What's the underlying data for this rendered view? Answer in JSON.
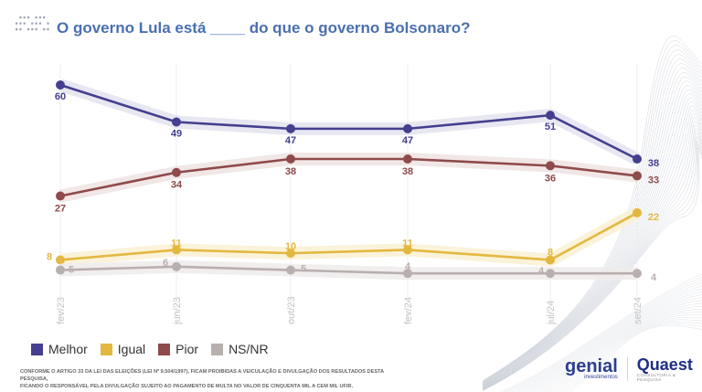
{
  "title": "O governo Lula está ____ do que o governo Bolsonaro?",
  "legend": [
    {
      "label": "Melhor",
      "color": "#443f8f"
    },
    {
      "label": "Igual",
      "color": "#e3b840"
    },
    {
      "label": "Pior",
      "color": "#8f4a4a"
    },
    {
      "label": "NS/NR",
      "color": "#b8b0ae"
    }
  ],
  "disclaimer": {
    "line1": "CONFORME O ARTIGO 33 DA LEI DAS ELEIÇÕES (LEI Nº 9.504/1997), FICAM PROIBIDAS A VEICULAÇÃO E DIVULGAÇÃO DOS RESULTADOS DESTA PESQUISA,",
    "line2": "FICANDO O RESPONSÁVEL PELA DIVULGAÇÃO SUJEITO AO PAGAMENTO DE MULTA NO VALOR DE CINQUENTA MIL A CEM MIL UFIR."
  },
  "logos": {
    "genial": "genial",
    "genial_sub": "investimentos",
    "quaest": "Quaest",
    "quaest_sub": "CONSULTORIA & PESQUISA"
  },
  "chart_data": {
    "type": "line",
    "title": "O governo Lula está ____ do que o governo Bolsonaro?",
    "xlabel": "",
    "ylabel": "",
    "categories": [
      "fev/23",
      "jun/23",
      "out/23",
      "fev/24",
      "jul/24",
      "set/24"
    ],
    "ylim": [
      0,
      65
    ],
    "grid": "vertical",
    "legend_position": "bottom-left",
    "series": [
      {
        "name": "Melhor",
        "color": "#443f8f",
        "values": [
          60,
          49,
          47,
          47,
          51,
          38
        ]
      },
      {
        "name": "Pior",
        "color": "#8f4a4a",
        "values": [
          27,
          34,
          38,
          38,
          36,
          33
        ]
      },
      {
        "name": "Igual",
        "color": "#e3b840",
        "values": [
          8,
          11,
          10,
          11,
          8,
          22
        ]
      },
      {
        "name": "NS/NR",
        "color": "#b8b0ae",
        "values": [
          5,
          6,
          5,
          4,
          4,
          4
        ]
      }
    ]
  }
}
